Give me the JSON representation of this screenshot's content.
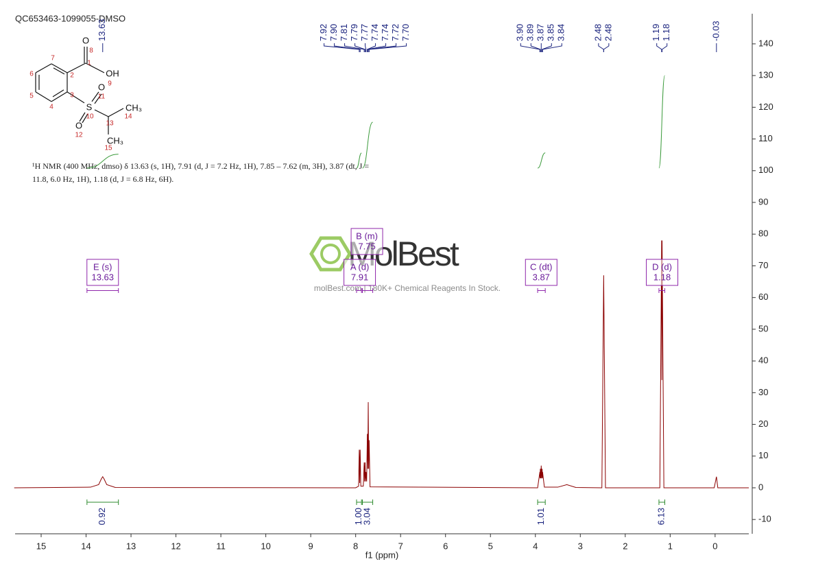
{
  "chart_data": {
    "type": "line",
    "title": "QC653463-1099055-DMSO",
    "description": [
      "¹H NMR (400 MHz, dmso) δ 13.63 (s, 1H), 7.91 (d, J = 7.2 Hz, 1H), 7.85 – 7.62 (m, 3H), 3.87 (dt, J =",
      "11.8, 6.0 Hz, 1H), 1.18 (d, J = 6.8 Hz, 6H)."
    ],
    "xlabel": "f1 (ppm)",
    "structure": [
      "O",
      "8",
      "1",
      "OH",
      "9",
      "7",
      "2",
      "6",
      "5",
      "3",
      "4",
      "S",
      "10",
      "O",
      "11",
      "O",
      "12",
      "13",
      "CH₃",
      "14",
      "CH₃",
      "15"
    ],
    "watermark": [
      "MolBest",
      "molBest.com | 180K+ Chemical Reagents In Stock."
    ],
    "color": "#8b0000",
    "x": [
      15.6,
      13.9,
      13.72,
      13.66,
      13.63,
      13.6,
      13.54,
      13.35,
      8.0,
      7.935,
      7.92,
      7.91,
      7.9,
      7.885,
      7.83,
      7.81,
      7.8,
      7.79,
      7.78,
      7.77,
      7.755,
      7.74,
      7.73,
      7.72,
      7.71,
      7.7,
      7.68,
      3.95,
      3.9,
      3.895,
      3.89,
      3.88,
      3.87,
      3.86,
      3.85,
      3.845,
      3.84,
      3.8,
      3.5,
      3.3,
      3.1,
      2.52,
      2.48,
      2.44,
      1.23,
      1.19,
      1.185,
      1.18,
      1.14,
      0.02,
      -0.03,
      -0.06,
      -0.75
    ],
    "values": [
      0,
      0.2,
      1.0,
      2.8,
      3.5,
      2.8,
      1.0,
      0.1,
      0,
      0.5,
      12,
      1.5,
      12,
      0.5,
      0.5,
      8,
      2,
      8,
      2,
      5,
      2,
      17,
      6,
      27,
      6,
      15,
      0.3,
      0,
      5,
      3,
      6,
      3,
      7,
      3,
      6,
      3,
      5,
      0.2,
      0.2,
      1,
      0.1,
      0,
      67,
      0,
      0,
      78,
      34,
      78,
      0,
      0,
      3.5,
      0,
      0
    ],
    "xlim": [
      15.58,
      -0.75
    ],
    "ylim": [
      -14.5,
      149.5
    ],
    "xticks": [
      15,
      14,
      13,
      12,
      11,
      10,
      9,
      8,
      7,
      6,
      5,
      4,
      3,
      2,
      1,
      0
    ],
    "yticks": [
      -10,
      0,
      10,
      20,
      30,
      40,
      50,
      60,
      70,
      80,
      90,
      100,
      110,
      120,
      130,
      140
    ],
    "peak_labels": [
      13.63,
      7.92,
      {
        "value": 7.9,
        "label": "7.90"
      },
      7.81,
      7.79,
      7.77,
      7.74,
      7.74,
      7.72,
      {
        "value": 7.7,
        "label": "7.70"
      },
      {
        "value": 3.9,
        "label": "3.90"
      },
      3.89,
      3.87,
      3.85,
      3.84,
      2.48,
      2.48,
      1.19,
      1.18,
      -0.03
    ],
    "multiplets": [
      {
        "name": "E (s)",
        "shift": 13.63,
        "from": 13.98,
        "to": 13.28
      },
      {
        "name": "A (d)",
        "shift": 7.91,
        "from": 7.98,
        "to": 7.87
      },
      {
        "name": "B (m)",
        "shift": 7.75,
        "from": 7.85,
        "to": 7.62
      },
      {
        "name": "C (dt)",
        "shift": 3.87,
        "from": 3.95,
        "to": 3.78
      },
      {
        "name": "D (d)",
        "shift": 1.18,
        "from": 1.25,
        "to": 1.12
      }
    ],
    "integrals": [
      {
        "value": 0.92,
        "from": 13.98,
        "to": 13.28
      },
      {
        "value": 1,
        "label": "1.00",
        "from": 7.98,
        "to": 7.87
      },
      {
        "value": 3.04,
        "from": 7.85,
        "to": 7.62
      },
      {
        "value": 1.01,
        "from": 3.95,
        "to": 3.78
      },
      {
        "value": 6.13,
        "from": 1.25,
        "to": 1.12
      }
    ]
  }
}
